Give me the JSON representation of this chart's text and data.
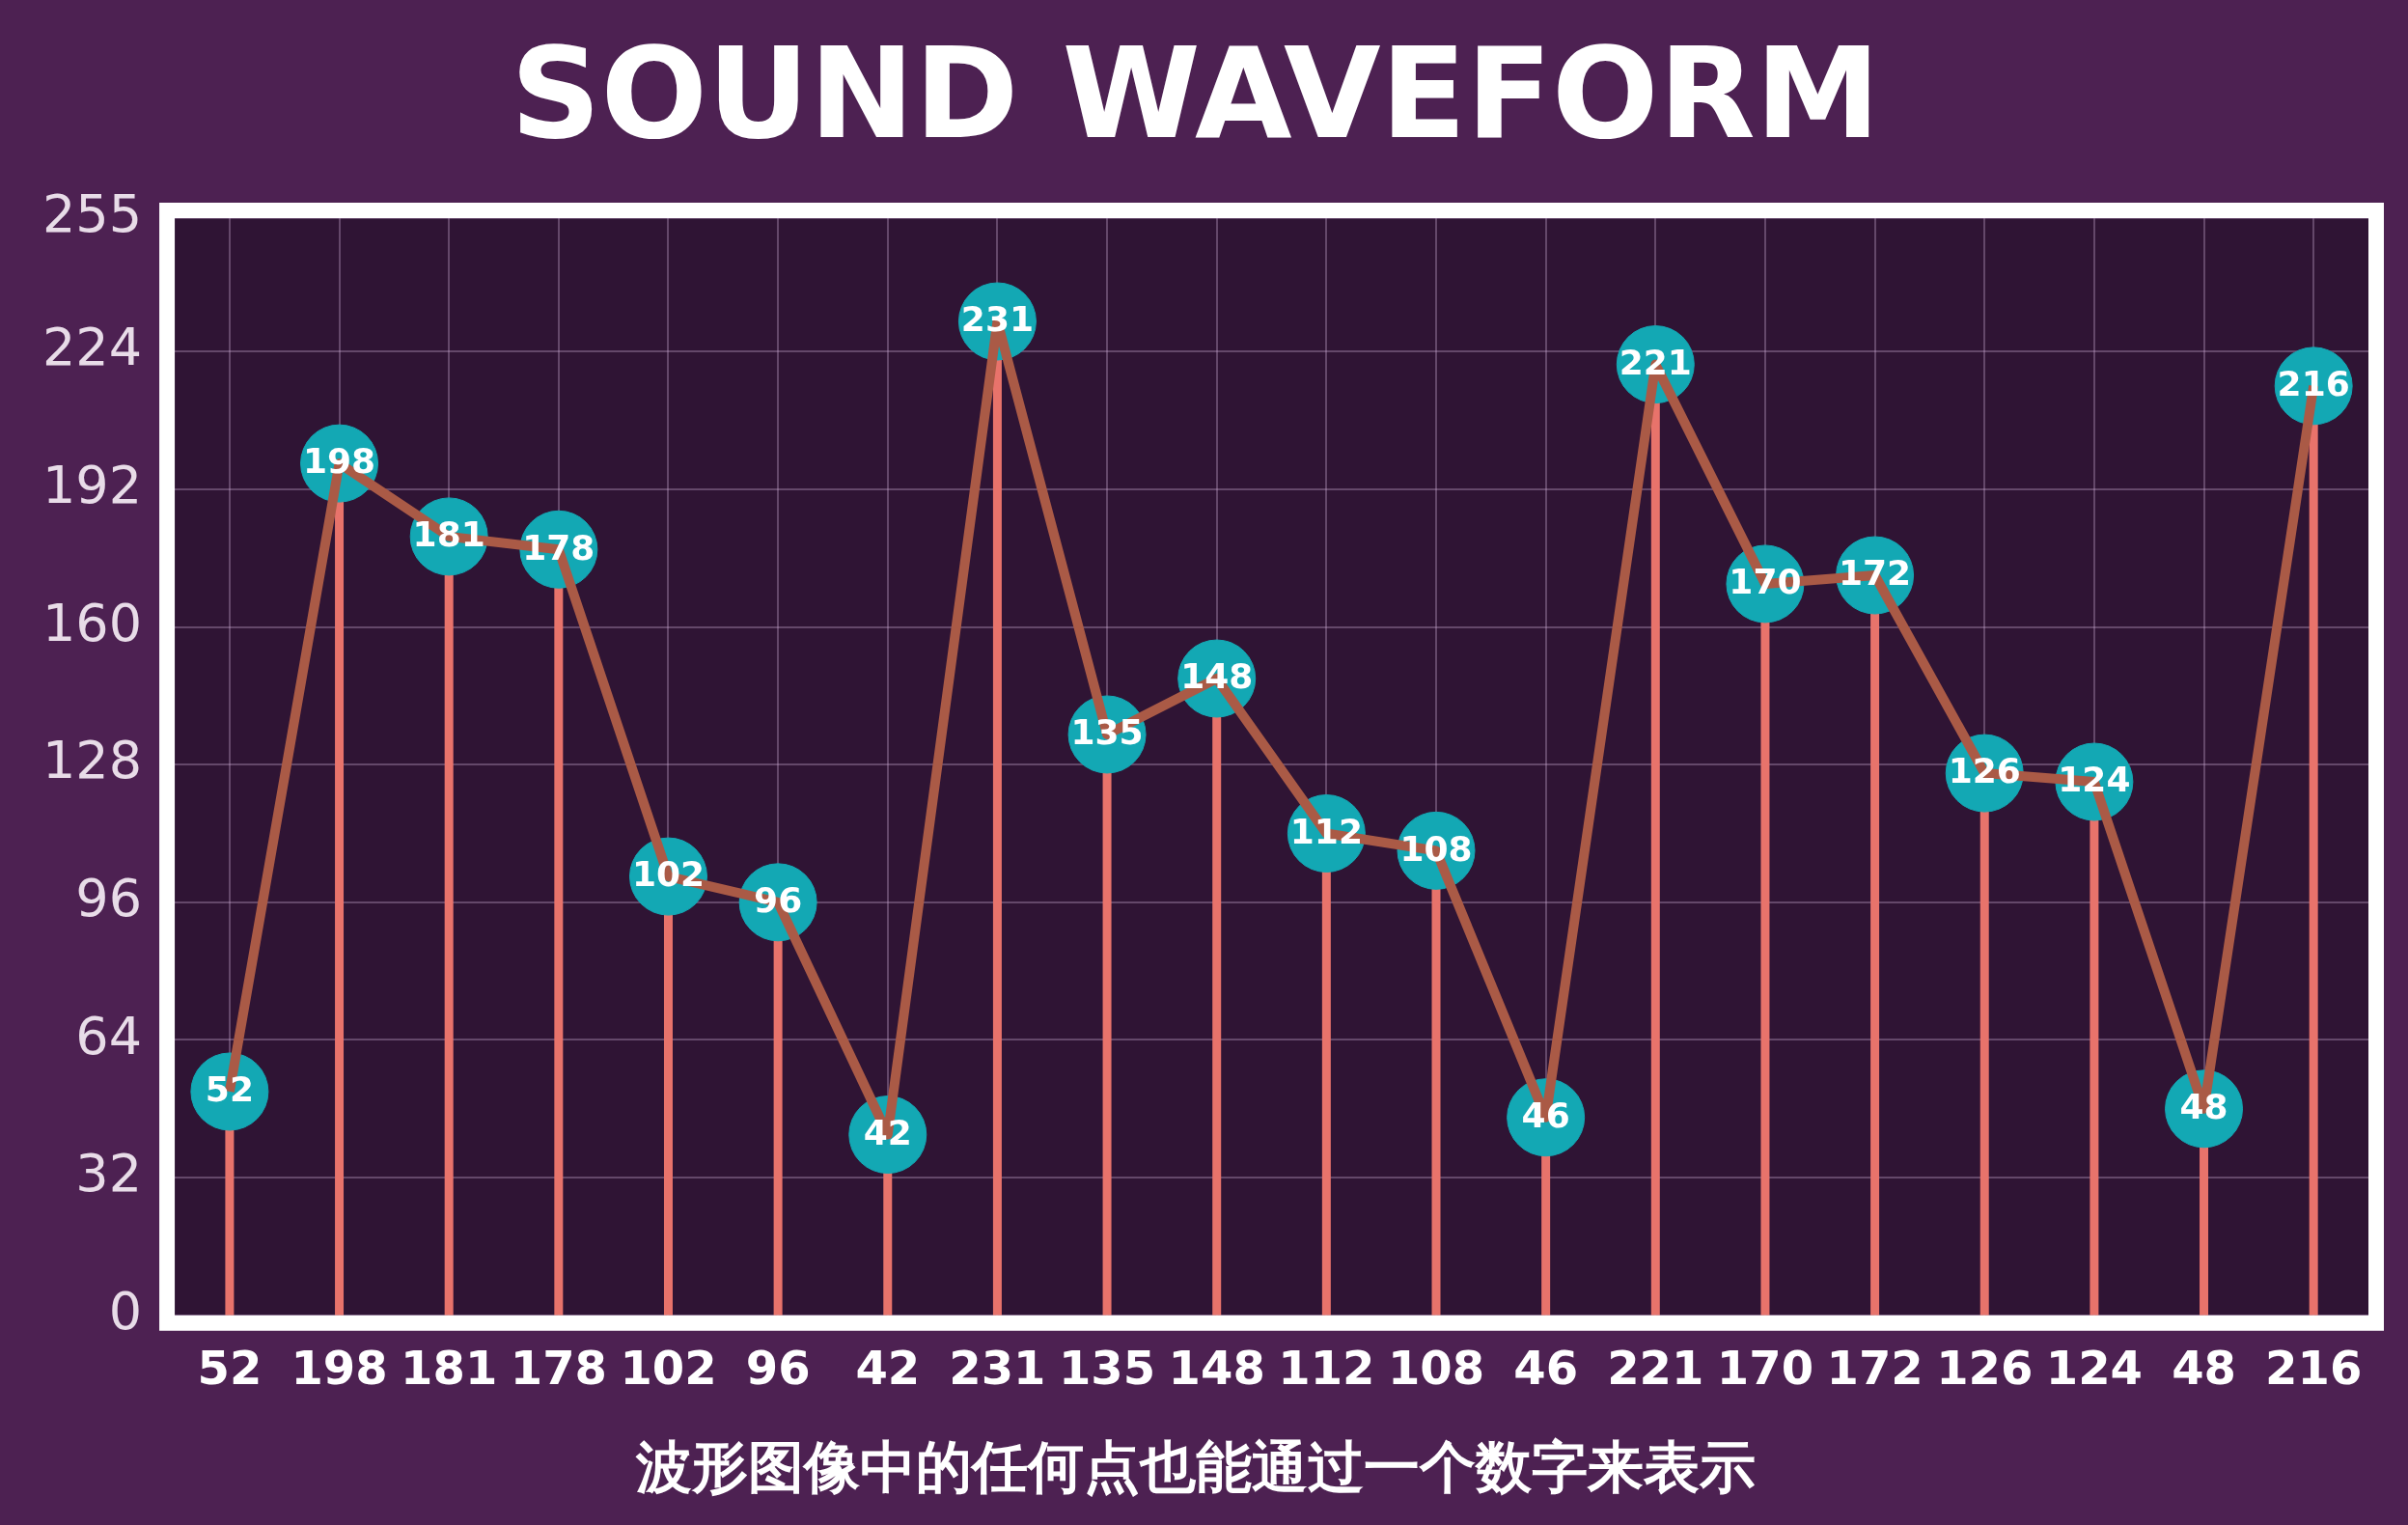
{
  "chart_data": {
    "type": "lollipop",
    "title": "SOUND WAVEFORM",
    "categories": [
      "52",
      "198",
      "181",
      "178",
      "102",
      "96",
      "42",
      "231",
      "135",
      "148",
      "112",
      "108",
      "46",
      "221",
      "170",
      "172",
      "126",
      "124",
      "48",
      "216"
    ],
    "series": [
      {
        "color": "#13a8b4",
        "values": [
          52,
          198,
          181,
          178,
          102,
          96,
          42,
          231,
          135,
          148,
          112,
          108,
          46,
          221,
          170,
          172,
          126,
          124,
          48,
          216
        ]
      },
      {
        "type": "line",
        "color": "#aa5a46",
        "marker": "none",
        "values": [
          52,
          198,
          181,
          178,
          102,
          96,
          42,
          231,
          135,
          148,
          112,
          108,
          46,
          221,
          170,
          172,
          126,
          124,
          48,
          216
        ],
        "value_labels": [
          null,
          null,
          null,
          null,
          null,
          null,
          null,
          null,
          null,
          null,
          null,
          null,
          null,
          null,
          null,
          null,
          null,
          null,
          null,
          null
        ]
      }
    ],
    "ylim": [
      0,
      255
    ],
    "yticks": [
      0,
      32,
      64,
      96,
      128,
      160,
      192,
      224,
      255
    ],
    "grid": true,
    "legend": false,
    "marker": "circle",
    "line_style": "solid",
    "data_labels": true,
    "annotations": [
      "波形图像中的任何点也能通过一个数字来表示"
    ]
  }
}
